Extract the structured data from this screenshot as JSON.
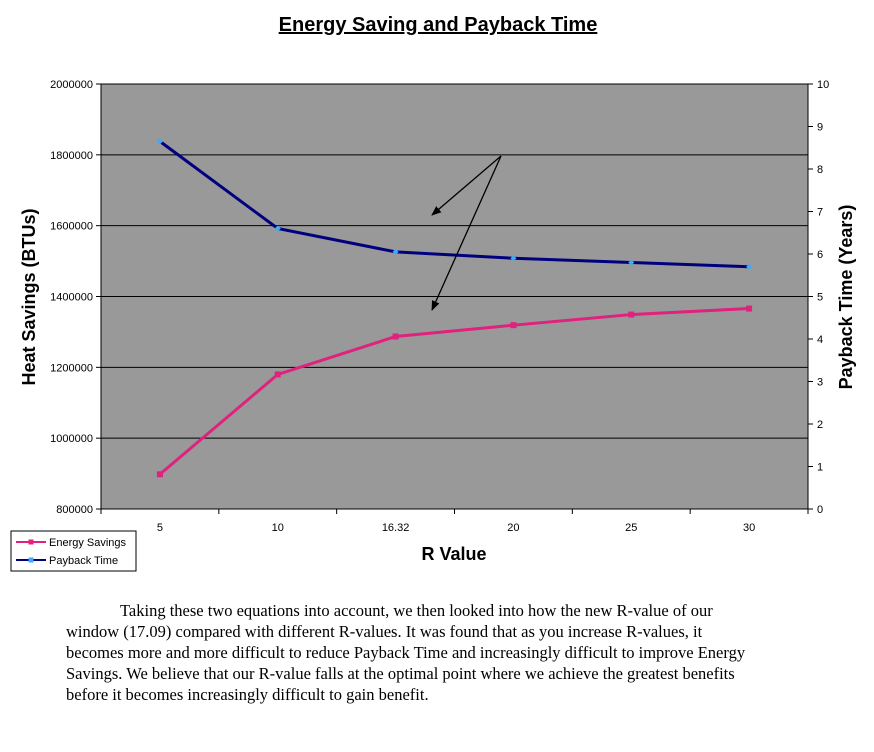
{
  "chart_data": {
    "type": "line",
    "title": "Energy Saving and Payback Time",
    "xlabel": "R Value",
    "ylabel_left": "Heat Savings (BTUs)",
    "ylabel_right": "Payback Time (Years)",
    "categories": [
      "5",
      "10",
      "16.32",
      "20",
      "25",
      "30"
    ],
    "ylim_left": [
      800000,
      2000000
    ],
    "yticks_left": [
      "800000",
      "1000000",
      "1200000",
      "1400000",
      "1600000",
      "1800000",
      "2000000"
    ],
    "ylim_right": [
      0,
      10
    ],
    "yticks_right": [
      "0",
      "1",
      "2",
      "3",
      "4",
      "5",
      "6",
      "7",
      "8",
      "9",
      "10"
    ],
    "grid": true,
    "legend_position": "bottom-left",
    "plot_background": "#999999",
    "series": [
      {
        "name": "Energy Savings",
        "axis": "left",
        "color": "#e0217d",
        "values": [
          898000,
          1180000,
          1287000,
          1319000,
          1349000,
          1366000
        ]
      },
      {
        "name": "Payback Time",
        "axis": "right",
        "color": "#00007f",
        "values": [
          8.65,
          6.6,
          6.05,
          5.9,
          5.8,
          5.7
        ]
      }
    ]
  },
  "paragraph": "Taking these two equations into account, we then looked into how the new R-value of our window (17.09) compared with different R-values. It was found that as you increase R-values, it becomes more and more difficult to reduce Payback Time and increasingly difficult to improve Energy Savings. We believe that our R-value falls at the optimal point where we achieve the greatest benefits before it becomes increasingly difficult to gain benefit."
}
